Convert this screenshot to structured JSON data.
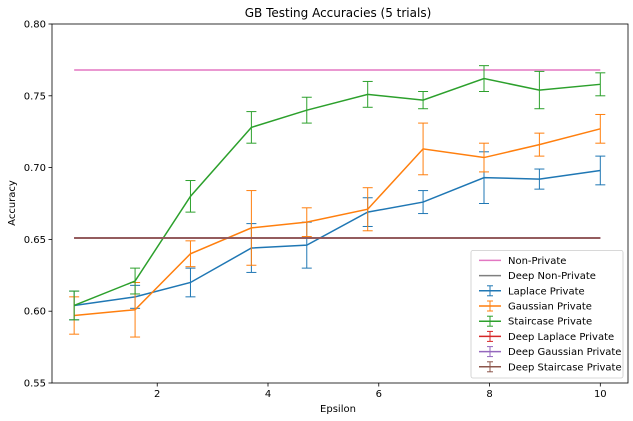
{
  "chart_data": {
    "type": "line",
    "title": "GB Testing Accuracies (5 trials)",
    "xlabel": "Epsilon",
    "ylabel": "Accuracy",
    "xlim": [
      0.1,
      10.5
    ],
    "ylim": [
      0.55,
      0.8
    ],
    "xticks": [
      2,
      4,
      6,
      8,
      10
    ],
    "yticks": [
      0.55,
      0.6,
      0.65,
      0.7,
      0.75,
      0.8
    ],
    "xtick_labels": [
      "2",
      "4",
      "6",
      "8",
      "10"
    ],
    "ytick_labels": [
      "0.55",
      "0.60",
      "0.65",
      "0.70",
      "0.75",
      "0.80"
    ],
    "grid": false,
    "legend_position": "lower-right",
    "x": [
      0.5,
      1.6,
      2.6,
      3.7,
      4.7,
      5.8,
      6.8,
      7.9,
      8.9,
      10.0
    ],
    "series": [
      {
        "name": "Non-Private",
        "color": "#e377c2",
        "kind": "line",
        "values": [
          0.768,
          0.768,
          0.768,
          0.768,
          0.768,
          0.768,
          0.768,
          0.768,
          0.768,
          0.768
        ]
      },
      {
        "name": "Deep Non-Private",
        "color": "#7f7f7f",
        "kind": "line",
        "values": [
          0.651,
          0.651,
          0.651,
          0.651,
          0.651,
          0.651,
          0.651,
          0.651,
          0.651,
          0.651
        ]
      },
      {
        "name": "Laplace Private",
        "color": "#1f77b4",
        "kind": "errorbar",
        "values": [
          0.604,
          0.61,
          0.62,
          0.644,
          0.646,
          0.669,
          0.676,
          0.693,
          0.692,
          0.698
        ],
        "errors": [
          0.01,
          0.008,
          0.01,
          0.017,
          0.016,
          0.01,
          0.008,
          0.018,
          0.007,
          0.01
        ]
      },
      {
        "name": "Gaussian Private",
        "color": "#ff7f0e",
        "kind": "errorbar",
        "values": [
          0.597,
          0.601,
          0.64,
          0.658,
          0.662,
          0.671,
          0.713,
          0.707,
          0.716,
          0.727
        ],
        "errors": [
          0.013,
          0.019,
          0.009,
          0.026,
          0.01,
          0.015,
          0.018,
          0.01,
          0.008,
          0.01
        ]
      },
      {
        "name": "Staircase Private",
        "color": "#2ca02c",
        "kind": "errorbar",
        "values": [
          0.604,
          0.621,
          0.68,
          0.728,
          0.74,
          0.751,
          0.747,
          0.762,
          0.754,
          0.758
        ],
        "errors": [
          0.01,
          0.009,
          0.011,
          0.011,
          0.009,
          0.009,
          0.006,
          0.009,
          0.013,
          0.008
        ]
      },
      {
        "name": "Deep Laplace Private",
        "color": "#d62728",
        "kind": "errorbar",
        "values": [
          0.651,
          0.651,
          0.651,
          0.651,
          0.651,
          0.651,
          0.651,
          0.651,
          0.651,
          0.651
        ],
        "errors": [
          0,
          0,
          0,
          0,
          0,
          0,
          0,
          0,
          0,
          0
        ]
      },
      {
        "name": "Deep Gaussian Private",
        "color": "#9467bd",
        "kind": "errorbar",
        "values": [
          0.651,
          0.651,
          0.651,
          0.651,
          0.651,
          0.651,
          0.651,
          0.651,
          0.651,
          0.651
        ],
        "errors": [
          0,
          0,
          0,
          0,
          0,
          0,
          0,
          0,
          0,
          0
        ]
      },
      {
        "name": "Deep Staircase Private",
        "color": "#8c564b",
        "kind": "errorbar",
        "values": [
          0.651,
          0.651,
          0.651,
          0.651,
          0.651,
          0.651,
          0.651,
          0.651,
          0.651,
          0.651
        ],
        "errors": [
          0,
          0,
          0,
          0,
          0,
          0,
          0,
          0,
          0,
          0
        ]
      }
    ]
  }
}
